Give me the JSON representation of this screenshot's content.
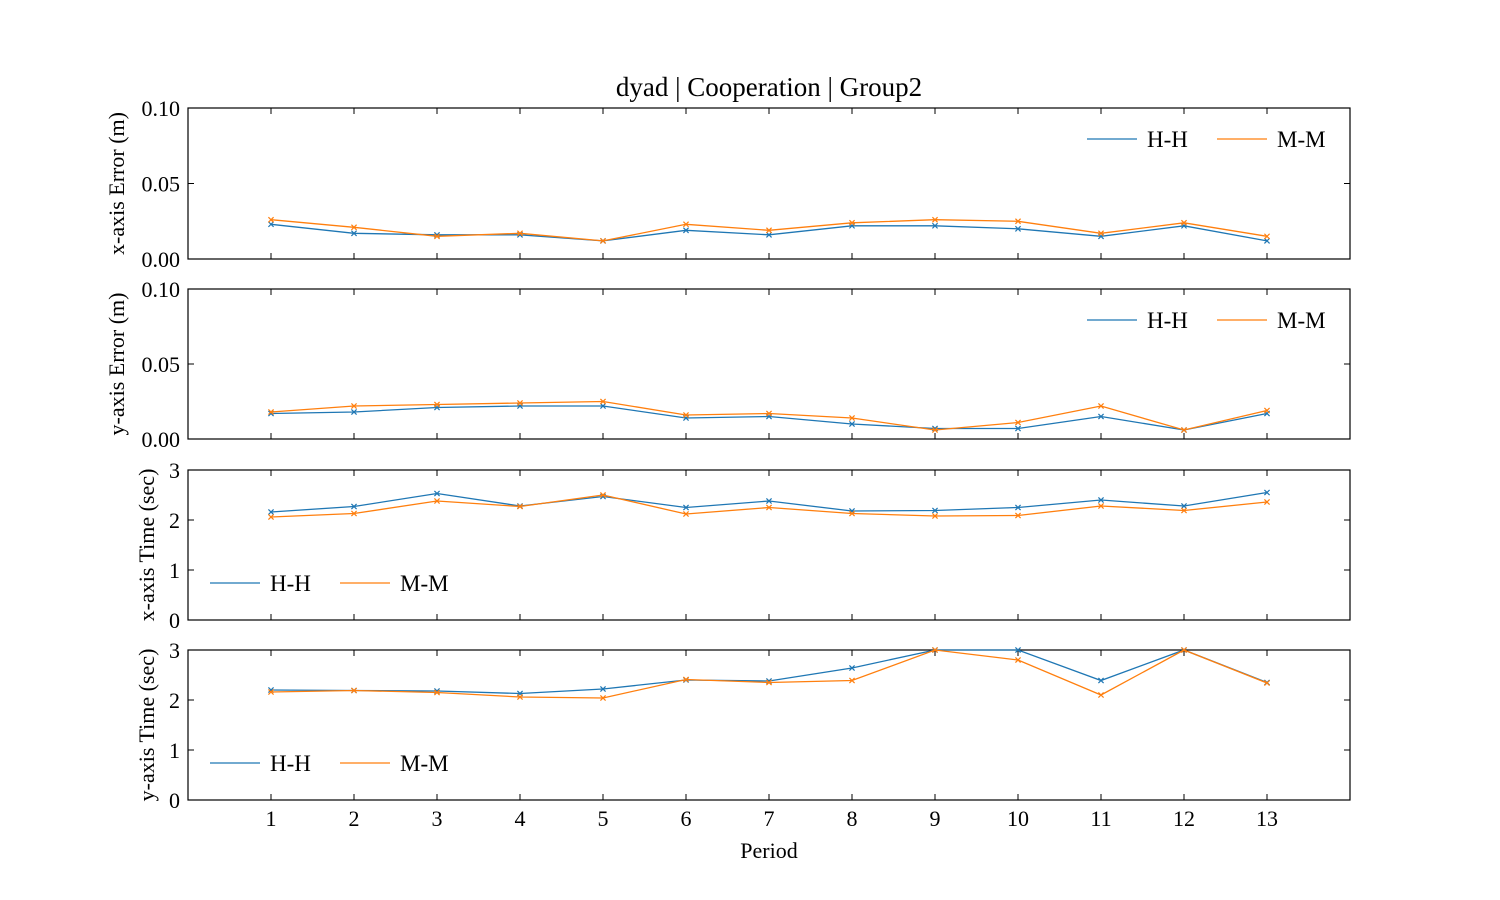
{
  "title": "dyad | Cooperation | Group2",
  "xlabel": "Period",
  "colors": {
    "H-H": "#1f77b4",
    "M-M": "#ff7f0e"
  },
  "chart_data": [
    {
      "type": "line",
      "ylabel": "x-axis Error (m)",
      "ylim": [
        0,
        0.1
      ],
      "yticks": [
        "0.00",
        "0.05",
        "0.10"
      ],
      "x": [
        1,
        2,
        3,
        4,
        5,
        6,
        7,
        8,
        9,
        10,
        11,
        12,
        13
      ],
      "xlim": [
        0,
        14
      ],
      "legend": "top-right",
      "series": [
        {
          "name": "H-H",
          "values": [
            0.023,
            0.017,
            0.016,
            0.016,
            0.012,
            0.019,
            0.016,
            0.022,
            0.022,
            0.02,
            0.015,
            0.022,
            0.012
          ]
        },
        {
          "name": "M-M",
          "values": [
            0.026,
            0.021,
            0.015,
            0.017,
            0.012,
            0.023,
            0.019,
            0.024,
            0.026,
            0.025,
            0.017,
            0.024,
            0.015
          ]
        }
      ]
    },
    {
      "type": "line",
      "ylabel": "y-axis Error (m)",
      "ylim": [
        0,
        0.1
      ],
      "yticks": [
        "0.00",
        "0.05",
        "0.10"
      ],
      "x": [
        1,
        2,
        3,
        4,
        5,
        6,
        7,
        8,
        9,
        10,
        11,
        12,
        13
      ],
      "xlim": [
        0,
        14
      ],
      "legend": "top-right",
      "series": [
        {
          "name": "H-H",
          "values": [
            0.017,
            0.018,
            0.021,
            0.022,
            0.022,
            0.014,
            0.015,
            0.01,
            0.007,
            0.007,
            0.015,
            0.006,
            0.017
          ]
        },
        {
          "name": "M-M",
          "values": [
            0.018,
            0.022,
            0.023,
            0.024,
            0.025,
            0.016,
            0.017,
            0.014,
            0.006,
            0.011,
            0.022,
            0.006,
            0.019
          ]
        }
      ]
    },
    {
      "type": "line",
      "ylabel": "x-axis Time (sec)",
      "ylim": [
        0,
        3
      ],
      "yticks": [
        "0",
        "1",
        "2",
        "3"
      ],
      "x": [
        1,
        2,
        3,
        4,
        5,
        6,
        7,
        8,
        9,
        10,
        11,
        12,
        13
      ],
      "xlim": [
        0,
        14
      ],
      "legend": "lower-left",
      "series": [
        {
          "name": "H-H",
          "values": [
            2.16,
            2.27,
            2.53,
            2.28,
            2.47,
            2.25,
            2.38,
            2.18,
            2.19,
            2.25,
            2.4,
            2.28,
            2.55
          ]
        },
        {
          "name": "M-M",
          "values": [
            2.06,
            2.13,
            2.38,
            2.27,
            2.5,
            2.12,
            2.25,
            2.13,
            2.08,
            2.09,
            2.28,
            2.19,
            2.36
          ]
        }
      ]
    },
    {
      "type": "line",
      "ylabel": "y-axis Time (sec)",
      "ylim": [
        0,
        3
      ],
      "yticks": [
        "0",
        "1",
        "2",
        "3"
      ],
      "x": [
        1,
        2,
        3,
        4,
        5,
        6,
        7,
        8,
        9,
        10,
        11,
        12,
        13
      ],
      "xlim": [
        0,
        14
      ],
      "xticks": [
        "1",
        "2",
        "3",
        "4",
        "5",
        "6",
        "7",
        "8",
        "9",
        "10",
        "11",
        "12",
        "13"
      ],
      "legend": "lower-left",
      "series": [
        {
          "name": "H-H",
          "values": [
            2.2,
            2.19,
            2.18,
            2.13,
            2.22,
            2.4,
            2.38,
            2.64,
            3.0,
            3.0,
            2.39,
            3.0,
            2.35
          ]
        },
        {
          "name": "M-M",
          "values": [
            2.16,
            2.19,
            2.15,
            2.06,
            2.04,
            2.41,
            2.35,
            2.39,
            3.0,
            2.8,
            2.1,
            3.0,
            2.34
          ]
        }
      ]
    }
  ]
}
